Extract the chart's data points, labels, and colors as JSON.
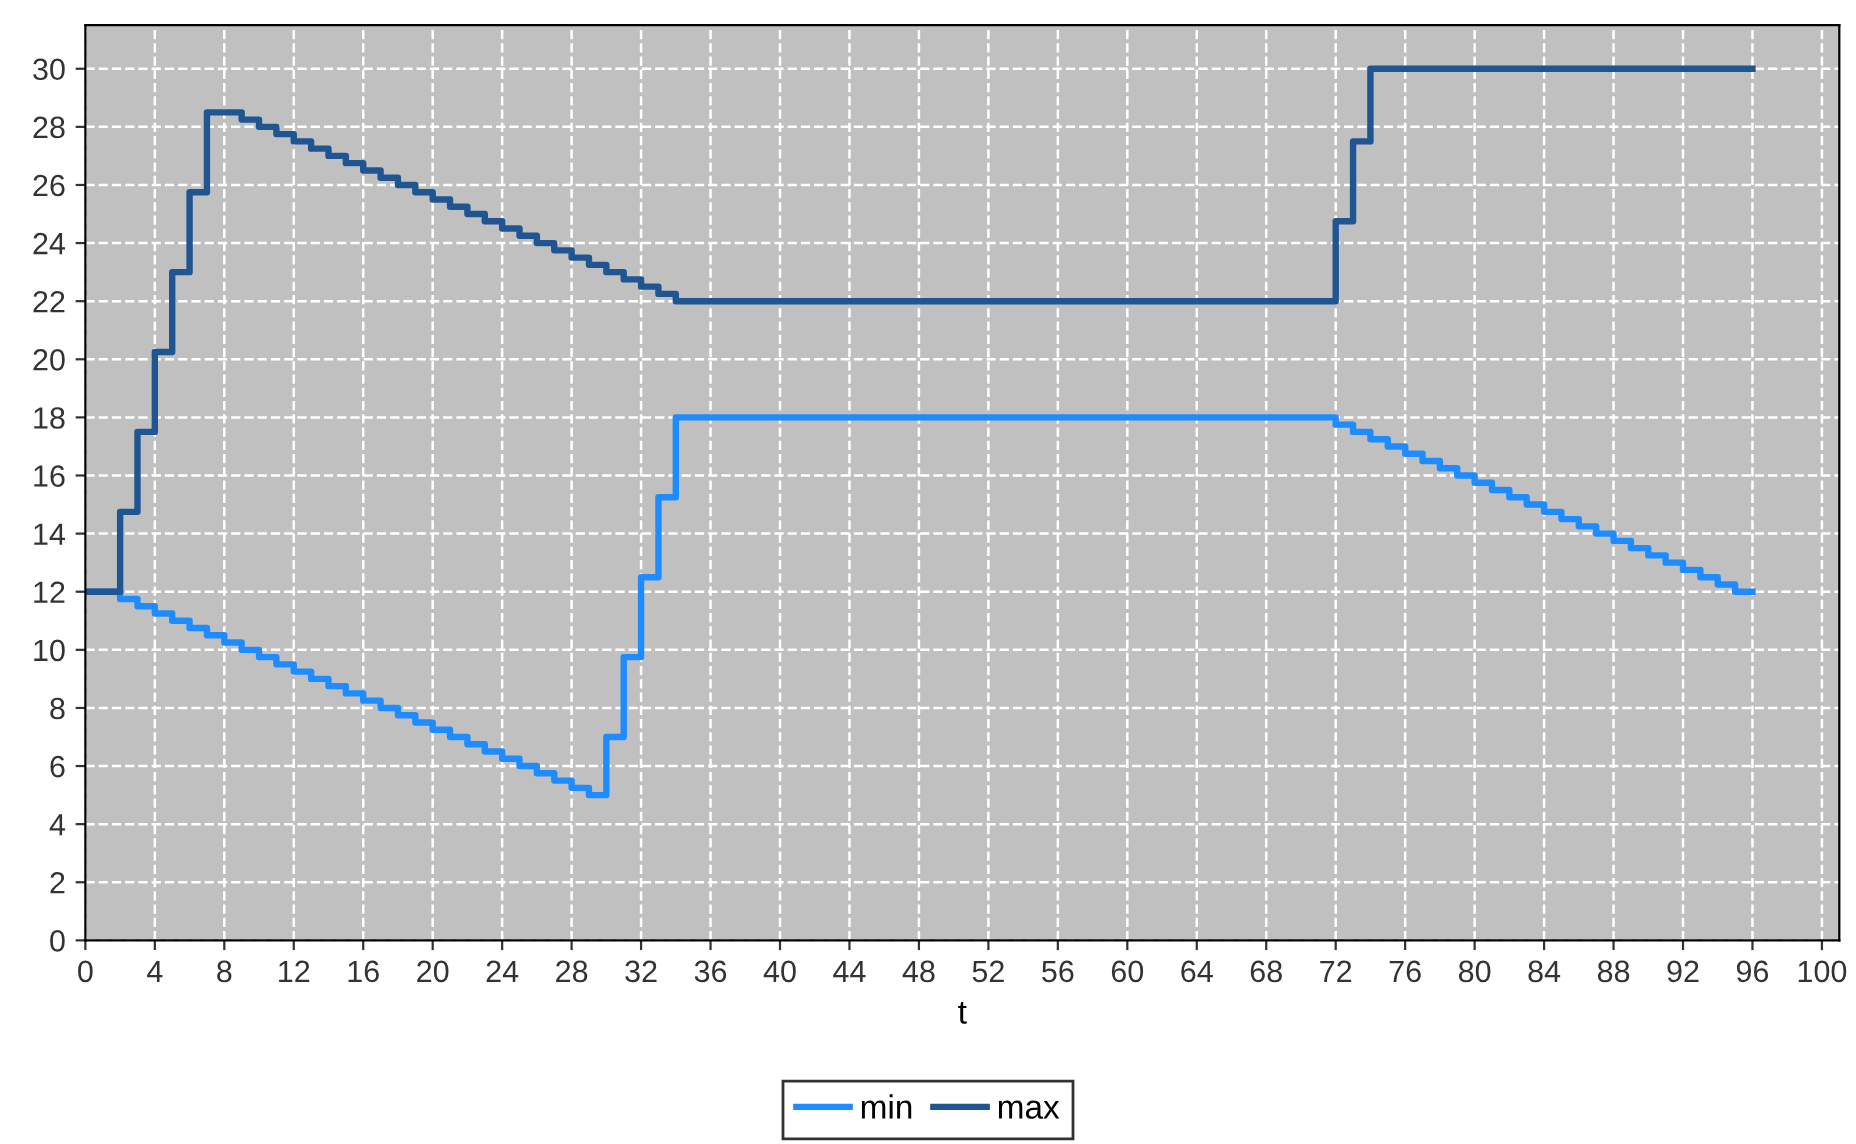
{
  "chart_data": {
    "type": "step",
    "xlabel": "t",
    "xlim": [
      0,
      101
    ],
    "xticks": [
      0,
      4,
      8,
      12,
      16,
      20,
      24,
      28,
      32,
      36,
      40,
      44,
      48,
      52,
      56,
      60,
      64,
      68,
      72,
      76,
      80,
      84,
      88,
      92,
      96,
      100
    ],
    "ylim": [
      0,
      31.5
    ],
    "yticks": [
      0,
      2,
      4,
      6,
      8,
      10,
      12,
      14,
      16,
      18,
      20,
      22,
      24,
      26,
      28,
      30
    ],
    "grid": true,
    "legend": "bottom",
    "line_style": "solid",
    "marker": "none",
    "series": [
      {
        "name": "min",
        "color": "#1e8cff",
        "x": [
          0,
          2,
          3,
          4,
          5,
          6,
          7,
          8,
          9,
          10,
          11,
          12,
          13,
          14,
          15,
          16,
          17,
          18,
          19,
          20,
          21,
          22,
          23,
          24,
          25,
          26,
          27,
          28,
          29,
          30,
          31,
          32,
          33,
          34,
          72,
          73,
          74,
          75,
          76,
          77,
          78,
          79,
          80,
          81,
          82,
          83,
          84,
          85,
          86,
          87,
          88,
          89,
          90,
          91,
          92,
          93,
          94,
          95,
          96
        ],
        "values": [
          12,
          11.75,
          11.5,
          11.25,
          11,
          10.75,
          10.5,
          10.25,
          10,
          9.75,
          9.5,
          9.25,
          9,
          8.75,
          8.5,
          8.25,
          8,
          7.75,
          7.5,
          7.25,
          7,
          6.75,
          6.5,
          6.25,
          6,
          5.75,
          5.5,
          5.25,
          5,
          7,
          9.75,
          12.5,
          15.25,
          18,
          17.75,
          17.5,
          17.25,
          17,
          16.75,
          16.5,
          16.25,
          16,
          15.75,
          15.5,
          15.25,
          15,
          14.75,
          14.5,
          14.25,
          14,
          13.75,
          13.5,
          13.25,
          13,
          12.75,
          12.5,
          12.25,
          12,
          12
        ]
      },
      {
        "name": "max",
        "color": "#1f5591",
        "x": [
          0,
          2,
          3,
          4,
          5,
          6,
          7,
          9,
          10,
          11,
          12,
          13,
          14,
          15,
          16,
          17,
          18,
          19,
          20,
          21,
          22,
          23,
          24,
          25,
          26,
          27,
          28,
          29,
          30,
          31,
          32,
          33,
          34,
          72,
          73,
          74,
          96
        ],
        "values": [
          12,
          14.75,
          17.5,
          20.25,
          23,
          25.75,
          28.5,
          28.25,
          28,
          27.75,
          27.5,
          27.25,
          27,
          26.75,
          26.5,
          26.25,
          26,
          25.75,
          25.5,
          25.25,
          25,
          24.75,
          24.5,
          24.25,
          24,
          23.75,
          23.5,
          23.25,
          23,
          22.75,
          22.5,
          22.25,
          22,
          24.75,
          27.5,
          30,
          30
        ]
      }
    ]
  }
}
